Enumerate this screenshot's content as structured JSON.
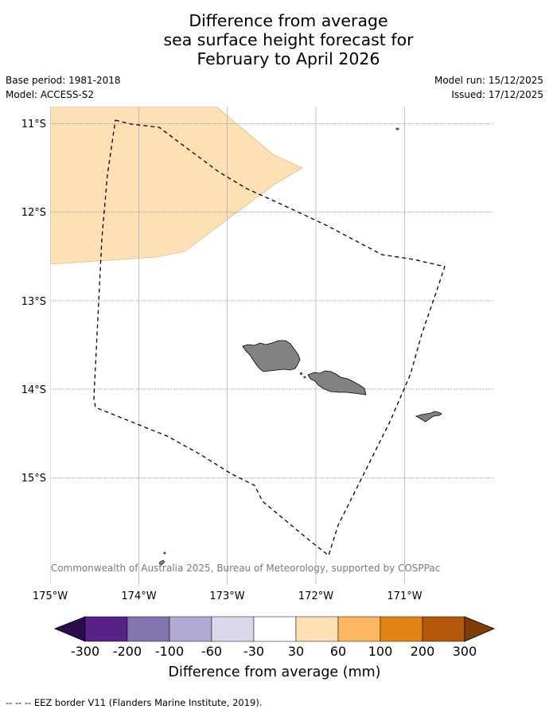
{
  "title": {
    "line1": "Difference from average",
    "line2": "sea surface height forecast for",
    "line3": "February to April 2026"
  },
  "meta": {
    "base_period": "Base period: 1981-2018",
    "model": "Model: ACCESS-S2",
    "model_run": "Model run: 15/12/2025",
    "issued": "Issued: 17/12/2025"
  },
  "map": {
    "lat_labels": [
      "11°S",
      "12°S",
      "13°S",
      "14°S",
      "15°S"
    ],
    "lon_labels": [
      "175°W",
      "174°W",
      "173°W",
      "172°W",
      "171°W"
    ],
    "copyright": "© Commonwealth of Australia 2025, Bureau of Meteorology, supported by COSPPac",
    "colors": {
      "anomaly_30_60": "#fde0b5",
      "land": "#828282",
      "grid": "#b0b0b0"
    }
  },
  "colorbar": {
    "title": "Difference from average (mm)",
    "ticks": [
      "-300",
      "-200",
      "-100",
      "-60",
      "-30",
      "30",
      "60",
      "100",
      "200",
      "300"
    ],
    "colors": {
      "under": "#2d0a4e",
      "bins": [
        "#582187",
        "#8373ae",
        "#b2a9d3",
        "#d9d9eb",
        "#ffffff",
        "#fde0b5",
        "#fbb65f",
        "#e28514",
        "#b35808"
      ],
      "over": "#7f3b08"
    }
  },
  "footer": {
    "legend_line": "-- -- -- EEZ border V11 (Flanders Marine Institute, 2019)."
  }
}
